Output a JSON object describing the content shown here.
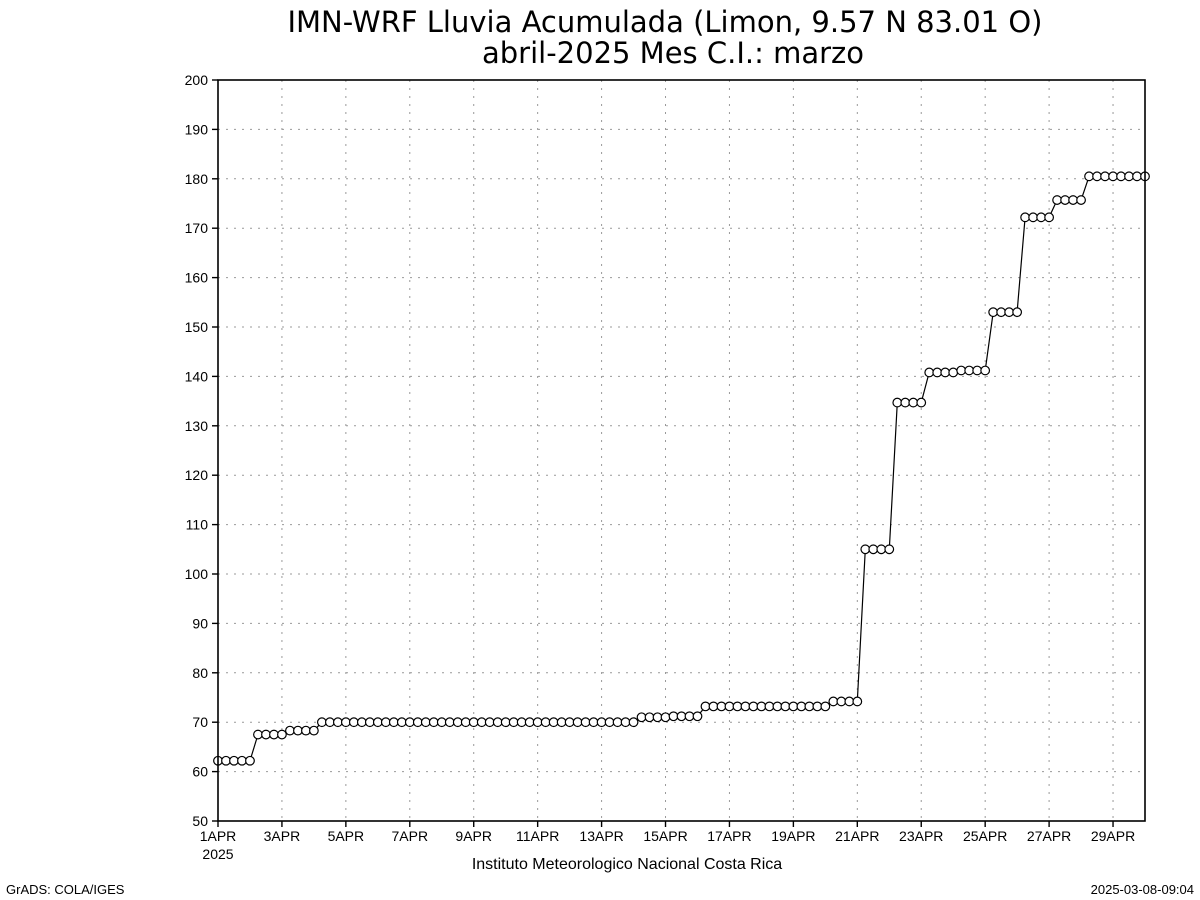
{
  "chart_data": {
    "type": "line",
    "title": "IMN-WRF  Lluvia Acumulada (Limon, 9.57  N 83.01  O)",
    "subtitle": "abril-2025 Mes C.I.: marzo",
    "ylim": [
      50,
      200
    ],
    "yticks": [
      "50",
      "60",
      "70",
      "80",
      "90",
      "100",
      "110",
      "120",
      "130",
      "140",
      "150",
      "160",
      "170",
      "180",
      "190",
      "200"
    ],
    "xlim": [
      1,
      30
    ],
    "xticks": [
      {
        "x": 1,
        "label": "1APR",
        "sub": "2025"
      },
      {
        "x": 3,
        "label": "3APR"
      },
      {
        "x": 5,
        "label": "5APR"
      },
      {
        "x": 7,
        "label": "7APR"
      },
      {
        "x": 9,
        "label": "9APR"
      },
      {
        "x": 11,
        "label": "11APR"
      },
      {
        "x": 13,
        "label": "13APR"
      },
      {
        "x": 15,
        "label": "15APR"
      },
      {
        "x": 17,
        "label": "17APR"
      },
      {
        "x": 19,
        "label": "19APR"
      },
      {
        "x": 21,
        "label": "21APR"
      },
      {
        "x": 23,
        "label": "23APR"
      },
      {
        "x": 25,
        "label": "25APR"
      },
      {
        "x": 27,
        "label": "27APR"
      },
      {
        "x": 29,
        "label": "29APR"
      }
    ],
    "grid": true,
    "x": [
      1.0,
      1.25,
      1.5,
      1.75,
      2.0,
      2.25,
      2.5,
      2.75,
      3.0,
      3.25,
      3.5,
      3.75,
      4.0,
      4.25,
      4.5,
      4.75,
      5.0,
      5.25,
      5.5,
      5.75,
      6.0,
      6.25,
      6.5,
      6.75,
      7.0,
      7.25,
      7.5,
      7.75,
      8.0,
      8.25,
      8.5,
      8.75,
      9.0,
      9.25,
      9.5,
      9.75,
      10.0,
      10.25,
      10.5,
      10.75,
      11.0,
      11.25,
      11.5,
      11.75,
      12.0,
      12.25,
      12.5,
      12.75,
      13.0,
      13.25,
      13.5,
      13.75,
      14.0,
      14.25,
      14.5,
      14.75,
      15.0,
      15.25,
      15.5,
      15.75,
      16.0,
      16.25,
      16.5,
      16.75,
      17.0,
      17.25,
      17.5,
      17.75,
      18.0,
      18.25,
      18.5,
      18.75,
      19.0,
      19.25,
      19.5,
      19.75,
      20.0,
      20.25,
      20.5,
      20.75,
      21.0,
      21.25,
      21.5,
      21.75,
      22.0,
      22.25,
      22.5,
      22.75,
      23.0,
      23.25,
      23.5,
      23.75,
      24.0,
      24.25,
      24.5,
      24.75,
      25.0,
      25.25,
      25.5,
      25.75,
      26.0,
      26.25,
      26.5,
      26.75,
      27.0,
      27.25,
      27.5,
      27.75,
      28.0,
      28.25,
      28.5,
      28.75,
      29.0,
      29.25,
      29.5,
      29.75,
      30.0
    ],
    "series": [
      {
        "values": [
          62.2,
          62.2,
          62.2,
          62.2,
          62.2,
          67.5,
          67.5,
          67.5,
          67.5,
          68.3,
          68.3,
          68.3,
          68.3,
          70.0,
          70.0,
          70.0,
          70.0,
          70.0,
          70.0,
          70.0,
          70.0,
          70.0,
          70.0,
          70.0,
          70.0,
          70.0,
          70.0,
          70.0,
          70.0,
          70.0,
          70.0,
          70.0,
          70.0,
          70.0,
          70.0,
          70.0,
          70.0,
          70.0,
          70.0,
          70.0,
          70.0,
          70.0,
          70.0,
          70.0,
          70.0,
          70.0,
          70.0,
          70.0,
          70.0,
          70.0,
          70.0,
          70.0,
          70.0,
          71.0,
          71.0,
          71.0,
          71.0,
          71.2,
          71.2,
          71.2,
          71.2,
          73.2,
          73.2,
          73.2,
          73.2,
          73.2,
          73.2,
          73.2,
          73.2,
          73.2,
          73.2,
          73.2,
          73.2,
          73.2,
          73.2,
          73.2,
          73.2,
          74.2,
          74.2,
          74.2,
          74.2,
          105.0,
          105.0,
          105.0,
          105.0,
          134.7,
          134.7,
          134.7,
          134.7,
          140.8,
          140.8,
          140.8,
          140.8,
          141.2,
          141.2,
          141.2,
          141.2,
          153.0,
          153.0,
          153.0,
          153.0,
          172.2,
          172.2,
          172.2,
          172.2,
          175.7,
          175.7,
          175.7,
          175.7,
          180.5,
          180.5,
          180.5,
          180.5,
          180.5,
          180.5,
          180.5,
          180.5
        ],
        "color": "#000000",
        "marker": "open-circle"
      }
    ]
  },
  "footer": {
    "center": "Instituto Meteorologico Nacional Costa Rica",
    "left": "GrADS: COLA/IGES",
    "right": "2025-03-08-09:04"
  }
}
